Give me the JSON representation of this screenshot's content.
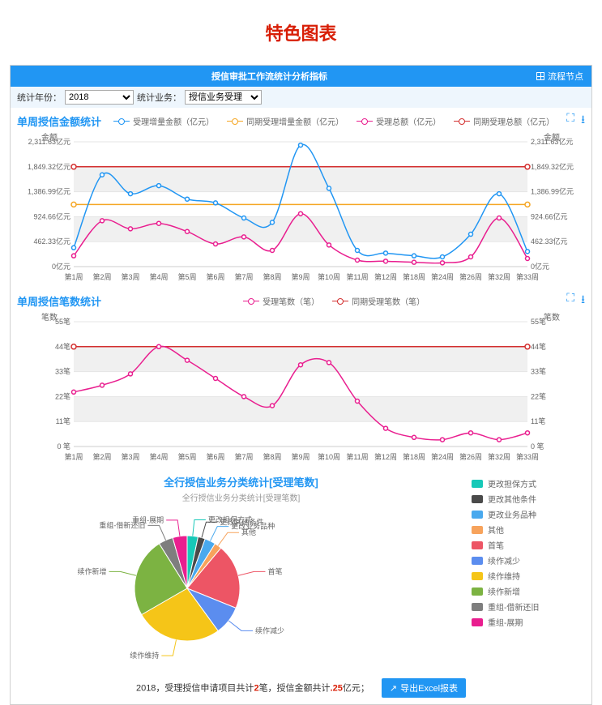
{
  "page_title": "特色图表",
  "header": {
    "title": "授信审批工作流统计分析指标",
    "right_label": "流程节点"
  },
  "filters": {
    "year_label": "统计年份：",
    "year_value": "2018",
    "biz_label": "统计业务：",
    "biz_value": "授信业务受理"
  },
  "chart1": {
    "title": "单周授信金额统计",
    "y_axis_title_left": "金额",
    "y_axis_title_right": "金额",
    "legend": [
      {
        "label": "受理增量金额（亿元）",
        "color": "#2196f3"
      },
      {
        "label": "同期受理增量金额（亿元）",
        "color": "#f5a623"
      },
      {
        "label": "受理总额（亿元）",
        "color": "#e91e8f"
      },
      {
        "label": "同期受理总额（亿元）",
        "color": "#d32f2f"
      }
    ],
    "categories": [
      "第1周",
      "第2周",
      "第3周",
      "第4周",
      "第5周",
      "第6周",
      "第7周",
      "第8周",
      "第9周",
      "第10周",
      "第11周",
      "第12周",
      "第18周",
      "第24周",
      "第26周",
      "第32周",
      "第33周"
    ],
    "yticks": [
      0,
      462.33,
      924.66,
      1386.99,
      1849.32,
      2311.63
    ],
    "ytick_labels": [
      "0亿元",
      "462.33亿元",
      "924.66亿元",
      "1,386.99亿元",
      "1,849.32亿元",
      "2,311.63亿元"
    ],
    "const_lines": [
      {
        "color": "#d32f2f",
        "value": 1849.32
      },
      {
        "color": "#f5a623",
        "value": 1150
      }
    ],
    "series": [
      {
        "name": "blue",
        "color": "#2196f3",
        "values": [
          350,
          1700,
          1350,
          1500,
          1250,
          1180,
          900,
          820,
          2250,
          1450,
          300,
          250,
          200,
          180,
          600,
          1350,
          280
        ]
      },
      {
        "name": "magenta",
        "color": "#e91e8f",
        "values": [
          200,
          850,
          700,
          800,
          650,
          420,
          550,
          300,
          980,
          400,
          120,
          100,
          80,
          70,
          180,
          900,
          150
        ]
      }
    ],
    "background": "#ffffff",
    "band_color": "#f0f0f0",
    "grid_color": "#e5e5e5"
  },
  "chart2": {
    "title": "单周授信笔数统计",
    "y_axis_title_left": "笔数",
    "y_axis_title_right": "笔数",
    "legend": [
      {
        "label": "受理笔数（笔）",
        "color": "#e91e8f"
      },
      {
        "label": "同期受理笔数（笔）",
        "color": "#d32f2f"
      }
    ],
    "categories": [
      "第1周",
      "第2周",
      "第3周",
      "第4周",
      "第5周",
      "第6周",
      "第7周",
      "第8周",
      "第9周",
      "第10周",
      "第11周",
      "第12周",
      "第18周",
      "第24周",
      "第26周",
      "第32周",
      "第33周"
    ],
    "yticks": [
      0,
      11,
      22,
      33,
      44,
      55
    ],
    "ytick_labels": [
      "0 笔",
      "11笔",
      "22笔",
      "33笔",
      "44笔",
      "55笔"
    ],
    "const_lines": [
      {
        "color": "#d32f2f",
        "value": 44
      }
    ],
    "series": [
      {
        "name": "magenta",
        "color": "#e91e8f",
        "values": [
          24,
          27,
          32,
          44,
          38,
          30,
          22,
          18,
          36,
          37,
          20,
          8,
          4,
          3,
          6,
          3,
          6
        ]
      }
    ],
    "background": "#ffffff",
    "band_color": "#f0f0f0",
    "grid_color": "#e5e5e5"
  },
  "pie": {
    "title": "全行授信业务分类统计[受理笔数]",
    "subtitle": "全行授信业务分类统计[受理笔数]",
    "slices": [
      {
        "label": "更改担保方式",
        "color": "#17c9b8",
        "value": 3
      },
      {
        "label": "更改其他条件",
        "color": "#4a4a4a",
        "value": 2
      },
      {
        "label": "更改业务品种",
        "color": "#49a9ee",
        "value": 3
      },
      {
        "label": "其他",
        "color": "#f7a35c",
        "value": 2
      },
      {
        "label": "首笔",
        "color": "#ed5565",
        "value": 18
      },
      {
        "label": "续作减少",
        "color": "#5b8def",
        "value": 8
      },
      {
        "label": "续作维持",
        "color": "#f5c518",
        "value": 24
      },
      {
        "label": "续作新增",
        "color": "#7cb342",
        "value": 22
      },
      {
        "label": "重组-借新还旧",
        "color": "#7e7e7e",
        "value": 4
      },
      {
        "label": "重组-展期",
        "color": "#e91e8f",
        "value": 4
      }
    ],
    "callout_labels": [
      {
        "text": "更改担保方式",
        "color": "#17c9b8"
      },
      {
        "text": "更改其他条件",
        "color": "#4a4a4a"
      },
      {
        "text": "更改业务品种",
        "color": "#49a9ee"
      },
      {
        "text": "其他",
        "color": "#f7a35c"
      },
      {
        "text": "首笔",
        "color": "#ed5565"
      },
      {
        "text": "续作减少",
        "color": "#5b8def"
      },
      {
        "text": "续作维持",
        "color": "#f5c518"
      },
      {
        "text": "续作新增",
        "color": "#7cb342"
      },
      {
        "text": "重组-借新还旧",
        "color": "#7e7e7e"
      },
      {
        "text": "重组-展期",
        "color": "#e91e8f"
      }
    ]
  },
  "bottom": {
    "prefix": "2018，受理授信申请项目共计",
    "count": "2",
    "mid": "笔，授信金额共计",
    "amount": ".25",
    "suffix": "亿元；",
    "export": "导出Excel报表"
  }
}
